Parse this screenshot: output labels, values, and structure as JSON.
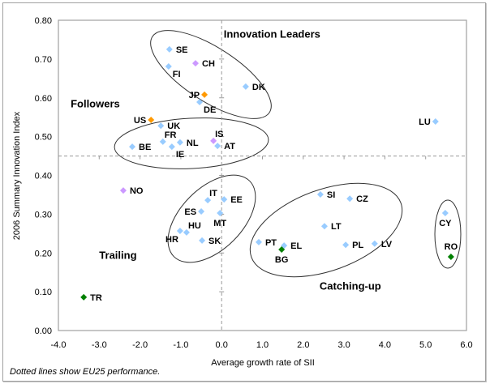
{
  "chart_data": {
    "type": "scatter",
    "title": "",
    "xlabel": "Average growth rate of SII",
    "ylabel": "2006 Summary Innovation Index",
    "xlim": [
      -4.0,
      6.0
    ],
    "ylim": [
      0.0,
      0.8
    ],
    "xticks": [
      "-4.0",
      "-3.0",
      "-2.0",
      "-1.0",
      "0.0",
      "1.0",
      "2.0",
      "3.0",
      "4.0",
      "5.0",
      "6.0"
    ],
    "yticks": [
      "0.00",
      "0.10",
      "0.20",
      "0.30",
      "0.40",
      "0.50",
      "0.60",
      "0.70",
      "0.80"
    ],
    "xtick_values": [
      -4,
      -3,
      -2,
      -1,
      0,
      1,
      2,
      3,
      4,
      5,
      6
    ],
    "ytick_values": [
      0,
      0.1,
      0.2,
      0.3,
      0.4,
      0.5,
      0.6,
      0.7,
      0.8
    ],
    "grid": false,
    "reference_lines": {
      "x": 0.0,
      "y": 0.45,
      "style": "dashed"
    },
    "note": "Dotted lines show EU25 performance.",
    "colors": {
      "eu": "#99ccff",
      "non_eu_europe": "#cc99ff",
      "other": "#ff9900",
      "candidate": "#008000",
      "ellipse": "#333333",
      "refline": "#999999"
    },
    "points": [
      {
        "label": "SE",
        "x": -1.28,
        "y": 0.725,
        "group": "eu",
        "anchor": "right"
      },
      {
        "label": "FI",
        "x": -1.3,
        "y": 0.681,
        "group": "eu",
        "anchor": "below-right"
      },
      {
        "label": "CH",
        "x": -0.64,
        "y": 0.689,
        "group": "non_eu_europe",
        "anchor": "right"
      },
      {
        "label": "JP",
        "x": -0.42,
        "y": 0.608,
        "group": "other",
        "anchor": "left"
      },
      {
        "label": "DE",
        "x": -0.54,
        "y": 0.589,
        "group": "eu",
        "anchor": "below-right"
      },
      {
        "label": "DK",
        "x": 0.59,
        "y": 0.629,
        "group": "eu",
        "anchor": "right"
      },
      {
        "label": "US",
        "x": -1.73,
        "y": 0.543,
        "group": "other",
        "anchor": "left"
      },
      {
        "label": "UK",
        "x": -1.49,
        "y": 0.528,
        "group": "eu",
        "anchor": "right"
      },
      {
        "label": "BE",
        "x": -2.19,
        "y": 0.474,
        "group": "eu",
        "anchor": "right"
      },
      {
        "label": "FR",
        "x": -1.44,
        "y": 0.487,
        "group": "eu",
        "anchor": "above-right"
      },
      {
        "label": "IE",
        "x": -1.22,
        "y": 0.474,
        "group": "eu",
        "anchor": "below-right"
      },
      {
        "label": "NL",
        "x": -1.02,
        "y": 0.485,
        "group": "eu",
        "anchor": "right"
      },
      {
        "label": "IS",
        "x": -0.2,
        "y": 0.489,
        "group": "non_eu_europe",
        "anchor": "above-right"
      },
      {
        "label": "AT",
        "x": -0.1,
        "y": 0.476,
        "group": "eu",
        "anchor": "right"
      },
      {
        "label": "LU",
        "x": 5.24,
        "y": 0.539,
        "group": "eu",
        "anchor": "left"
      },
      {
        "label": "NO",
        "x": -2.41,
        "y": 0.361,
        "group": "non_eu_europe",
        "anchor": "right"
      },
      {
        "label": "IT",
        "x": -0.34,
        "y": 0.336,
        "group": "eu",
        "anchor": "above-right"
      },
      {
        "label": "EE",
        "x": 0.06,
        "y": 0.338,
        "group": "eu",
        "anchor": "right"
      },
      {
        "label": "ES",
        "x": -0.5,
        "y": 0.307,
        "group": "eu",
        "anchor": "left"
      },
      {
        "label": "MT",
        "x": -0.04,
        "y": 0.303,
        "group": "eu",
        "anchor": "below"
      },
      {
        "label": "HR",
        "x": -1.02,
        "y": 0.257,
        "group": "candidate_hr",
        "anchor": "below-left"
      },
      {
        "label": "HU",
        "x": -0.86,
        "y": 0.253,
        "group": "eu",
        "anchor": "above-right"
      },
      {
        "label": "SK",
        "x": -0.48,
        "y": 0.232,
        "group": "eu",
        "anchor": "right"
      },
      {
        "label": "SI",
        "x": 2.42,
        "y": 0.351,
        "group": "eu",
        "anchor": "right"
      },
      {
        "label": "CZ",
        "x": 3.14,
        "y": 0.34,
        "group": "eu",
        "anchor": "right"
      },
      {
        "label": "LT",
        "x": 2.52,
        "y": 0.269,
        "group": "eu",
        "anchor": "right"
      },
      {
        "label": "PT",
        "x": 0.91,
        "y": 0.228,
        "group": "eu",
        "anchor": "right"
      },
      {
        "label": "EL",
        "x": 1.53,
        "y": 0.219,
        "group": "eu",
        "anchor": "right"
      },
      {
        "label": "BG",
        "x": 1.47,
        "y": 0.209,
        "group": "candidate",
        "anchor": "below"
      },
      {
        "label": "PL",
        "x": 3.04,
        "y": 0.221,
        "group": "eu",
        "anchor": "right"
      },
      {
        "label": "LV",
        "x": 3.75,
        "y": 0.224,
        "group": "eu",
        "anchor": "right"
      },
      {
        "label": "CY",
        "x": 5.48,
        "y": 0.303,
        "group": "eu",
        "anchor": "below"
      },
      {
        "label": "RO",
        "x": 5.62,
        "y": 0.19,
        "group": "candidate",
        "anchor": "above"
      },
      {
        "label": "TR",
        "x": -3.38,
        "y": 0.086,
        "group": "candidate",
        "anchor": "right"
      }
    ],
    "annotations": [
      {
        "text": "Innovation Leaders",
        "x": 0.05,
        "y": 0.755
      },
      {
        "text": "Followers",
        "x": -3.7,
        "y": 0.575
      },
      {
        "text": "Trailing",
        "x": -3.0,
        "y": 0.185
      },
      {
        "text": "Catching-up",
        "x": 2.4,
        "y": 0.105
      }
    ],
    "clusters": [
      {
        "name": "Innovation Leaders",
        "members": [
          "SE",
          "FI",
          "CH",
          "JP",
          "DE",
          "DK"
        ]
      },
      {
        "name": "Followers",
        "members": [
          "US",
          "UK",
          "BE",
          "FR",
          "IE",
          "NL",
          "IS",
          "AT"
        ]
      },
      {
        "name": "Trailing",
        "members": [
          "IT",
          "EE",
          "ES",
          "MT",
          "HR",
          "HU",
          "SK"
        ]
      },
      {
        "name": "Catching-up",
        "members": [
          "SI",
          "CZ",
          "LT",
          "PT",
          "EL",
          "BG",
          "PL",
          "LV"
        ]
      },
      {
        "name": "Catching-up (CY/RO)",
        "members": [
          "CY",
          "RO"
        ]
      }
    ]
  }
}
